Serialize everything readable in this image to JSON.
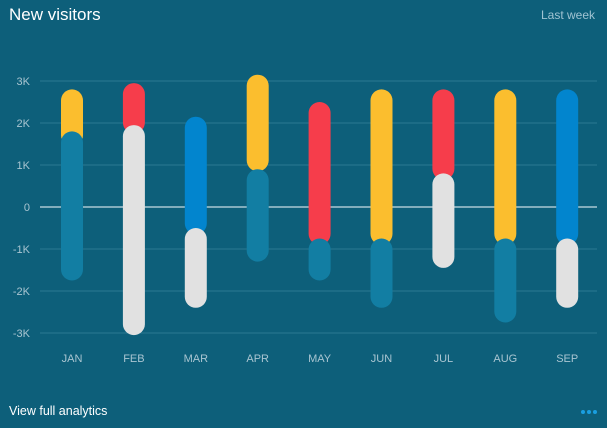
{
  "header": {
    "title": "New visitors",
    "period": "Last week"
  },
  "footer": {
    "link_label": "View full analytics",
    "more_icon": "more-dots-icon"
  },
  "colors": {
    "background": "#0d5f7a",
    "yellow": "#fbbe2e",
    "red": "#f63d4b",
    "blue": "#0285ce",
    "teal": "#127ea3",
    "gray": "#e1e1e1",
    "grid": "#2b7891",
    "zero_line": "#c9dce4",
    "tick_label": "#a9c5d1"
  },
  "chart_data": {
    "type": "bar",
    "categories": [
      "JAN",
      "FEB",
      "MAR",
      "APR",
      "MAY",
      "JUN",
      "JUL",
      "AUG",
      "SEP"
    ],
    "yticks": [
      3000,
      2000,
      1000,
      0,
      -1000,
      -2000,
      -3000
    ],
    "ytick_labels": [
      "3K",
      "2K",
      "1K",
      "0",
      "-1K",
      "-2K",
      "-3K"
    ],
    "ylim": [
      -3300,
      3300
    ],
    "grid": true,
    "segments": [
      [
        {
          "from": 1450,
          "to": 2800,
          "color": "yellow"
        },
        {
          "from": -1750,
          "to": 1800,
          "color": "teal"
        }
      ],
      [
        {
          "from": 1750,
          "to": 2950,
          "color": "red"
        },
        {
          "from": -3050,
          "to": 1950,
          "color": "gray"
        }
      ],
      [
        {
          "from": -650,
          "to": 2150,
          "color": "blue"
        },
        {
          "from": -2400,
          "to": -500,
          "color": "gray"
        }
      ],
      [
        {
          "from": 850,
          "to": 3150,
          "color": "yellow"
        },
        {
          "from": -1300,
          "to": 900,
          "color": "teal"
        }
      ],
      [
        {
          "from": -900,
          "to": 2500,
          "color": "red"
        },
        {
          "from": -1750,
          "to": -750,
          "color": "teal"
        }
      ],
      [
        {
          "from": -900,
          "to": 2800,
          "color": "yellow"
        },
        {
          "from": -2400,
          "to": -750,
          "color": "teal"
        }
      ],
      [
        {
          "from": 650,
          "to": 2800,
          "color": "red"
        },
        {
          "from": -1450,
          "to": 800,
          "color": "gray"
        }
      ],
      [
        {
          "from": -900,
          "to": 2800,
          "color": "yellow"
        },
        {
          "from": -2750,
          "to": -750,
          "color": "teal"
        }
      ],
      [
        {
          "from": -900,
          "to": 2800,
          "color": "blue"
        },
        {
          "from": -2400,
          "to": -750,
          "color": "gray"
        }
      ]
    ]
  }
}
